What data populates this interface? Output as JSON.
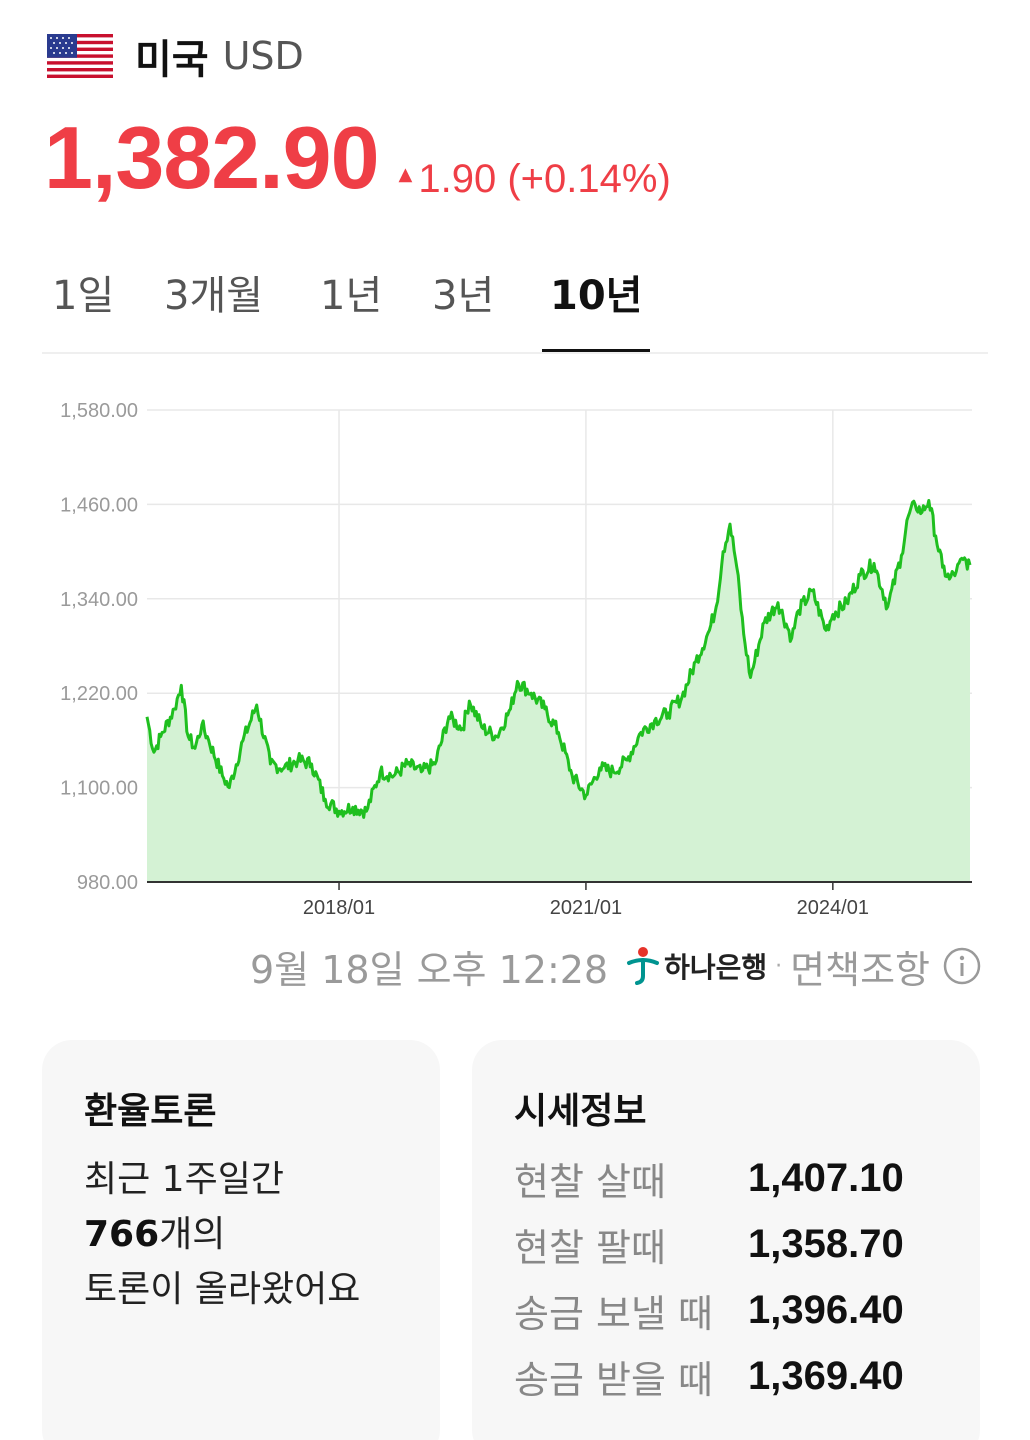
{
  "header": {
    "country": "미국",
    "currency_code": "USD",
    "flag_icon": "us-flag-icon"
  },
  "quote": {
    "price": "1,382.90",
    "change": "1.90 (+0.14%)",
    "direction": "up",
    "color": "#ef3e46"
  },
  "tabs": [
    {
      "label": "1일",
      "active": false
    },
    {
      "label": "3개월",
      "active": false
    },
    {
      "label": "1년",
      "active": false
    },
    {
      "label": "3년",
      "active": false
    },
    {
      "label": "10년",
      "active": true
    }
  ],
  "chart_data": {
    "type": "area",
    "y_ticks": [
      "1,580.00",
      "1,460.00",
      "1,340.00",
      "1,220.00",
      "1,100.00",
      "980.00"
    ],
    "x_ticks": [
      "2018/01",
      "2021/01",
      "2024/01"
    ],
    "ylim": [
      980,
      1580
    ],
    "grid": true,
    "line_color": "#1fbf1f",
    "fill_color": "#d4f2d4",
    "series": [
      {
        "points": [
          [
            "2015/09",
            1190
          ],
          [
            "2015/10",
            1145
          ],
          [
            "2015/11",
            1165
          ],
          [
            "2016/01",
            1200
          ],
          [
            "2016/02",
            1230
          ],
          [
            "2016/03",
            1165
          ],
          [
            "2016/04",
            1150
          ],
          [
            "2016/05",
            1180
          ],
          [
            "2016/06",
            1160
          ],
          [
            "2016/08",
            1115
          ],
          [
            "2016/09",
            1100
          ],
          [
            "2016/11",
            1160
          ],
          [
            "2017/01",
            1205
          ],
          [
            "2017/03",
            1130
          ],
          [
            "2017/05",
            1125
          ],
          [
            "2017/07",
            1135
          ],
          [
            "2017/09",
            1130
          ],
          [
            "2017/11",
            1085
          ],
          [
            "2018/01",
            1070
          ],
          [
            "2018/03",
            1075
          ],
          [
            "2018/05",
            1070
          ],
          [
            "2018/07",
            1120
          ],
          [
            "2018/09",
            1115
          ],
          [
            "2018/11",
            1130
          ],
          [
            "2019/01",
            1120
          ],
          [
            "2019/03",
            1130
          ],
          [
            "2019/05",
            1190
          ],
          [
            "2019/07",
            1175
          ],
          [
            "2019/08",
            1210
          ],
          [
            "2019/10",
            1175
          ],
          [
            "2019/12",
            1165
          ],
          [
            "2020/02",
            1200
          ],
          [
            "2020/03",
            1235
          ],
          [
            "2020/05",
            1220
          ],
          [
            "2020/07",
            1200
          ],
          [
            "2020/09",
            1170
          ],
          [
            "2020/11",
            1115
          ],
          [
            "2021/01",
            1090
          ],
          [
            "2021/03",
            1125
          ],
          [
            "2021/05",
            1120
          ],
          [
            "2021/07",
            1135
          ],
          [
            "2021/09",
            1170
          ],
          [
            "2021/11",
            1185
          ],
          [
            "2022/01",
            1195
          ],
          [
            "2022/03",
            1215
          ],
          [
            "2022/05",
            1260
          ],
          [
            "2022/07",
            1300
          ],
          [
            "2022/08",
            1330
          ],
          [
            "2022/09",
            1400
          ],
          [
            "2022/10",
            1435
          ],
          [
            "2022/11",
            1380
          ],
          [
            "2022/12",
            1295
          ],
          [
            "2023/01",
            1240
          ],
          [
            "2023/03",
            1310
          ],
          [
            "2023/05",
            1335
          ],
          [
            "2023/07",
            1290
          ],
          [
            "2023/08",
            1325
          ],
          [
            "2023/10",
            1350
          ],
          [
            "2023/12",
            1300
          ],
          [
            "2024/01",
            1320
          ],
          [
            "2024/03",
            1335
          ],
          [
            "2024/05",
            1370
          ],
          [
            "2024/07",
            1385
          ],
          [
            "2024/09",
            1330
          ],
          [
            "2024/11",
            1395
          ],
          [
            "2024/12",
            1445
          ],
          [
            "2025/01",
            1460
          ],
          [
            "2025/02",
            1450
          ],
          [
            "2025/03",
            1465
          ],
          [
            "2025/04",
            1420
          ],
          [
            "2025/05",
            1380
          ],
          [
            "2025/06",
            1365
          ],
          [
            "2025/07",
            1375
          ],
          [
            "2025/08",
            1390
          ],
          [
            "2025/09",
            1383
          ]
        ]
      }
    ]
  },
  "meta": {
    "timestamp": "9월 18일 오후 12:28",
    "bank_name": "하나은행",
    "separator": "·",
    "disclaimer": "면책조항"
  },
  "discussion": {
    "title": "환율토론",
    "line1": "최근 1주일간",
    "count": "766",
    "count_suffix": "개의",
    "line3": "토론이 올라왔어요"
  },
  "rates": {
    "title": "시세정보",
    "rows": [
      {
        "label": "현찰 살때",
        "value": "1,407.10"
      },
      {
        "label": "현찰 팔때",
        "value": "1,358.70"
      },
      {
        "label": "송금 보낼 때",
        "value": "1,396.40"
      },
      {
        "label": "송금 받을 때",
        "value": "1,369.40"
      }
    ]
  }
}
